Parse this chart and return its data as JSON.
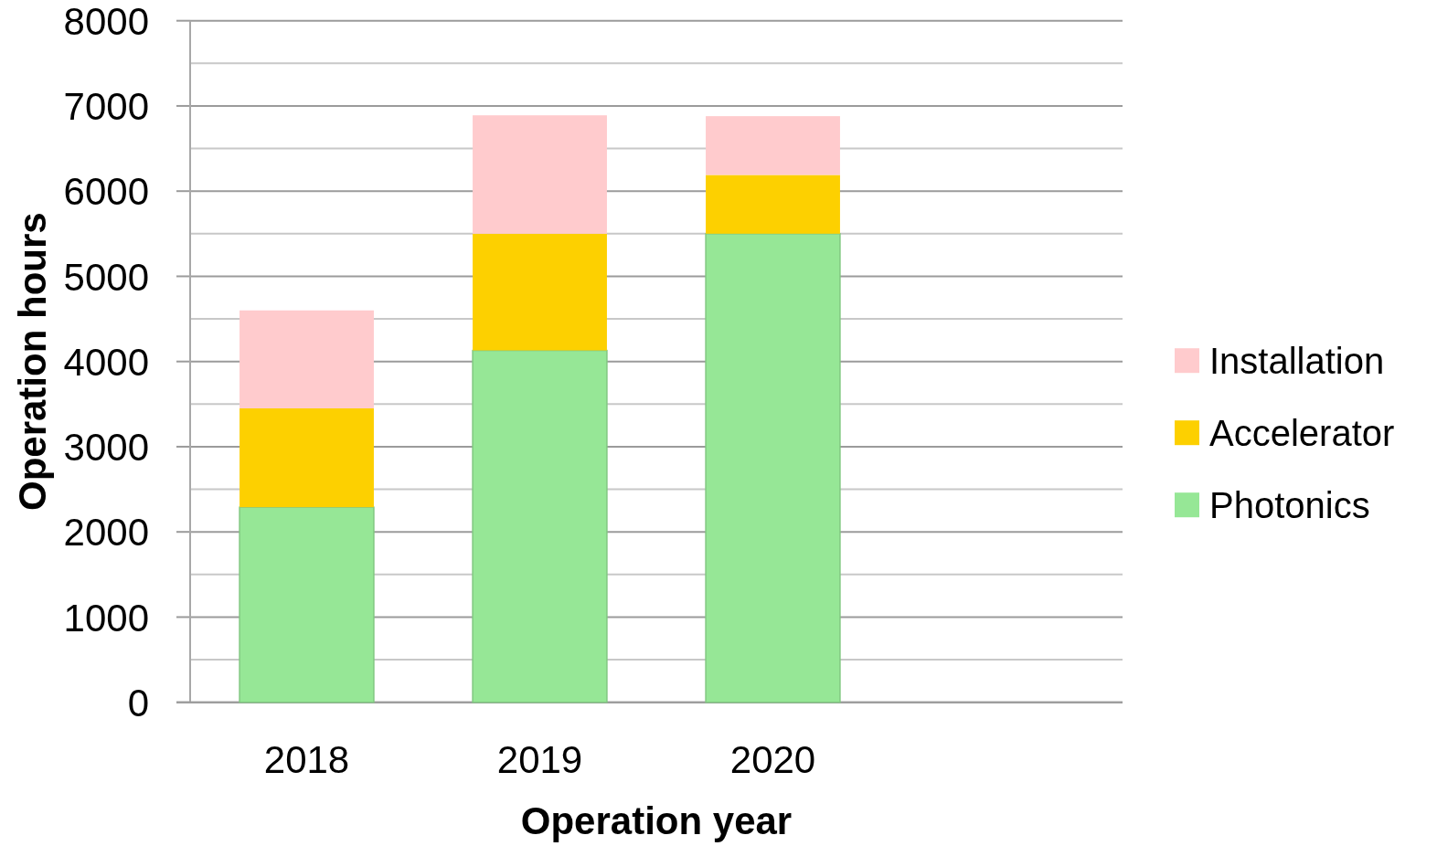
{
  "chart_data": {
    "type": "bar",
    "stacked": true,
    "xlabel": "Operation year",
    "ylabel": "Operation hours",
    "categories": [
      "2018",
      "2019",
      "2020",
      null
    ],
    "series": [
      {
        "name": "Photonics",
        "color": "#96e796",
        "values": [
          2290,
          4130,
          5500,
          null
        ]
      },
      {
        "name": "Accelerator",
        "color": "#fdd000",
        "values": [
          1160,
          1370,
          690,
          null
        ]
      },
      {
        "name": "Installation",
        "color": "#ffcbcd",
        "values": [
          1150,
          1390,
          690,
          null
        ]
      }
    ],
    "ylim": [
      0,
      8000
    ],
    "yticks": [
      0,
      {
        "value": 500,
        "label": null
      },
      1000,
      {
        "value": 1500,
        "label": null
      },
      2000,
      {
        "value": 2500,
        "label": null
      },
      3000,
      {
        "value": 3500,
        "label": null
      },
      4000,
      {
        "value": 4500,
        "label": null
      },
      5000,
      {
        "value": 5500,
        "label": null
      },
      6000,
      {
        "value": 6500,
        "label": null
      },
      7000,
      {
        "value": 7500,
        "label": null
      },
      8000
    ],
    "grid": "y",
    "legend": "right"
  }
}
